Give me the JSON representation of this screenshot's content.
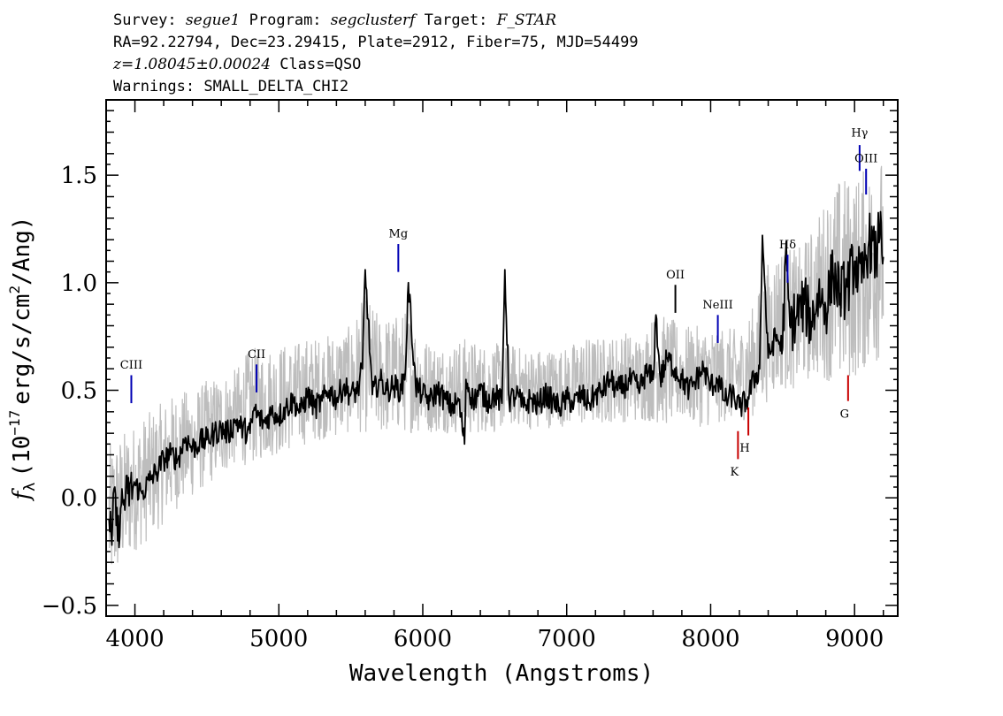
{
  "header": {
    "line1": {
      "survey_label": "Survey:",
      "survey": "segue1",
      "program_label": "Program:",
      "program": "segclusterf",
      "target_label": "Target:",
      "target": "F_STAR"
    },
    "line2": "RA=92.22794, Dec=23.29415, Plate=2912, Fiber=75, MJD=54499",
    "line3": {
      "redshift": "z=1.08045±0.00024",
      "class": "Class=QSO"
    },
    "line4": "Warnings: SMALL_DELTA_CHI2"
  },
  "chart_data": {
    "type": "line",
    "xlabel": "Wavelength (Angstroms)",
    "ylabel": "f_λ (10^-17 erg/s/cm^2/Ang)",
    "ylabel_parts": {
      "f": "f",
      "lambda": "λ",
      "base": "(10",
      "exp": "−17",
      "mid": "erg/s/cm",
      "exp2": "2",
      "end": "/Ang)"
    },
    "xlim": [
      3800,
      9300
    ],
    "ylim": [
      -0.55,
      1.85
    ],
    "x_ticks": [
      4000,
      5000,
      6000,
      7000,
      8000,
      9000
    ],
    "x_tick_labels": [
      "4000",
      "5000",
      "6000",
      "7000",
      "8000",
      "9000"
    ],
    "y_ticks": [
      -0.5,
      0.0,
      0.5,
      1.0,
      1.5
    ],
    "y_tick_labels": [
      "−0.5",
      "0.0",
      "0.5",
      "1.0",
      "1.5"
    ],
    "series": [
      {
        "role": "flux_noise_envelope",
        "color": "#bdbdbd",
        "x": [
          3820,
          3900,
          4000,
          4100,
          4200,
          4300,
          4400,
          4500,
          4600,
          4700,
          4800,
          4900,
          5000,
          5100,
          5200,
          5300,
          5400,
          5500,
          5600,
          5700,
          5800,
          5900,
          6000,
          6100,
          6200,
          6300,
          6400,
          6500,
          6600,
          6700,
          6800,
          6900,
          7000,
          7100,
          7200,
          7300,
          7400,
          7500,
          7600,
          7700,
          7800,
          7900,
          8000,
          8100,
          8200,
          8300,
          8400,
          8500,
          8600,
          8700,
          8800,
          8900,
          9000,
          9100,
          9200
        ],
        "y_low": [
          -0.45,
          -0.35,
          -0.25,
          -0.2,
          -0.12,
          -0.05,
          0.0,
          0.05,
          0.1,
          0.15,
          0.15,
          0.18,
          0.2,
          0.22,
          0.25,
          0.27,
          0.28,
          0.3,
          0.3,
          0.28,
          0.3,
          0.3,
          0.3,
          0.3,
          0.3,
          0.28,
          0.3,
          0.3,
          0.33,
          0.33,
          0.3,
          0.33,
          0.33,
          0.33,
          0.33,
          0.35,
          0.35,
          0.35,
          0.35,
          0.33,
          0.35,
          0.33,
          0.33,
          0.35,
          0.35,
          0.38,
          0.45,
          0.5,
          0.5,
          0.55,
          0.55,
          0.5,
          0.55,
          0.6,
          0.65
        ],
        "y_high": [
          0.25,
          0.3,
          0.35,
          0.4,
          0.45,
          0.5,
          0.5,
          0.55,
          0.58,
          0.6,
          0.7,
          0.7,
          0.72,
          0.72,
          0.75,
          0.75,
          0.78,
          0.8,
          0.95,
          0.85,
          0.85,
          0.88,
          0.75,
          0.72,
          0.72,
          0.75,
          0.72,
          0.72,
          0.72,
          0.7,
          0.7,
          0.7,
          0.7,
          0.75,
          0.75,
          0.75,
          0.78,
          0.75,
          0.85,
          0.85,
          0.8,
          0.8,
          0.8,
          0.8,
          0.78,
          0.9,
          1.1,
          1.2,
          1.15,
          1.25,
          1.4,
          1.5,
          1.5,
          1.55,
          1.6
        ]
      },
      {
        "role": "flux",
        "color": "#000000",
        "x": [
          3820,
          3840,
          3860,
          3880,
          3900,
          3950,
          4000,
          4050,
          4100,
          4150,
          4200,
          4250,
          4300,
          4350,
          4400,
          4450,
          4500,
          4550,
          4600,
          4650,
          4700,
          4750,
          4800,
          4830,
          4850,
          4900,
          4950,
          5000,
          5050,
          5100,
          5150,
          5200,
          5250,
          5300,
          5350,
          5400,
          5450,
          5500,
          5550,
          5580,
          5600,
          5650,
          5700,
          5750,
          5800,
          5850,
          5880,
          5900,
          5950,
          6000,
          6050,
          6100,
          6150,
          6200,
          6250,
          6290,
          6300,
          6350,
          6400,
          6450,
          6500,
          6550,
          6570,
          6600,
          6650,
          6700,
          6750,
          6800,
          6850,
          6900,
          6950,
          7000,
          7050,
          7100,
          7150,
          7200,
          7250,
          7300,
          7350,
          7400,
          7450,
          7500,
          7550,
          7600,
          7620,
          7650,
          7700,
          7750,
          7800,
          7850,
          7900,
          7950,
          8000,
          8050,
          8100,
          8150,
          8200,
          8250,
          8300,
          8340,
          8360,
          8400,
          8450,
          8500,
          8520,
          8550,
          8600,
          8650,
          8700,
          8750,
          8800,
          8850,
          8900,
          8950,
          9000,
          9050,
          9100,
          9150,
          9180,
          9200
        ],
        "y": [
          -0.1,
          -0.22,
          0.05,
          -0.2,
          -0.05,
          0.02,
          0.06,
          0.02,
          0.08,
          0.12,
          0.18,
          0.2,
          0.18,
          0.28,
          0.23,
          0.26,
          0.27,
          0.3,
          0.32,
          0.3,
          0.36,
          0.32,
          0.3,
          0.42,
          0.38,
          0.35,
          0.4,
          0.38,
          0.42,
          0.45,
          0.4,
          0.48,
          0.42,
          0.45,
          0.5,
          0.46,
          0.52,
          0.48,
          0.5,
          0.6,
          1.06,
          0.48,
          0.55,
          0.5,
          0.52,
          0.5,
          0.6,
          1.0,
          0.52,
          0.48,
          0.45,
          0.5,
          0.46,
          0.42,
          0.45,
          0.25,
          0.55,
          0.45,
          0.5,
          0.45,
          0.48,
          0.44,
          1.06,
          0.45,
          0.48,
          0.42,
          0.46,
          0.43,
          0.48,
          0.45,
          0.42,
          0.46,
          0.44,
          0.48,
          0.44,
          0.48,
          0.5,
          0.55,
          0.5,
          0.52,
          0.55,
          0.5,
          0.58,
          0.55,
          0.85,
          0.55,
          0.65,
          0.6,
          0.55,
          0.5,
          0.55,
          0.6,
          0.52,
          0.55,
          0.45,
          0.48,
          0.42,
          0.45,
          0.55,
          0.6,
          1.22,
          0.65,
          0.75,
          0.7,
          1.12,
          0.8,
          0.85,
          0.9,
          0.82,
          0.95,
          0.88,
          1.05,
          0.95,
          0.98,
          1.1,
          1.0,
          1.2,
          1.1,
          1.33,
          1.12
        ]
      }
    ],
    "emission_lines": [
      {
        "label": "CIII",
        "x": 3975,
        "color": "#0000b4"
      },
      {
        "label": "CII",
        "x": 4845,
        "color": "#0000b4"
      },
      {
        "label": "Mg",
        "x": 5830,
        "color": "#0000b4"
      },
      {
        "label": "OII",
        "x": 7755,
        "color": "#000000"
      },
      {
        "label": "NeIII",
        "x": 8050,
        "color": "#0000b4"
      },
      {
        "label": "Hδ",
        "x": 8535,
        "color": "#0000b4"
      },
      {
        "label": "Hγ",
        "x": 9035,
        "color": "#0000b4"
      },
      {
        "label": "OIII",
        "x": 9080,
        "color": "#0000b4"
      }
    ],
    "absorption_lines": [
      {
        "label": "K",
        "x": 8190,
        "color": "#c80000"
      },
      {
        "label": "H",
        "x": 8262,
        "color": "#c80000"
      },
      {
        "label": "G",
        "x": 8955,
        "color": "#c80000"
      }
    ],
    "grid": false,
    "legend": "none"
  }
}
